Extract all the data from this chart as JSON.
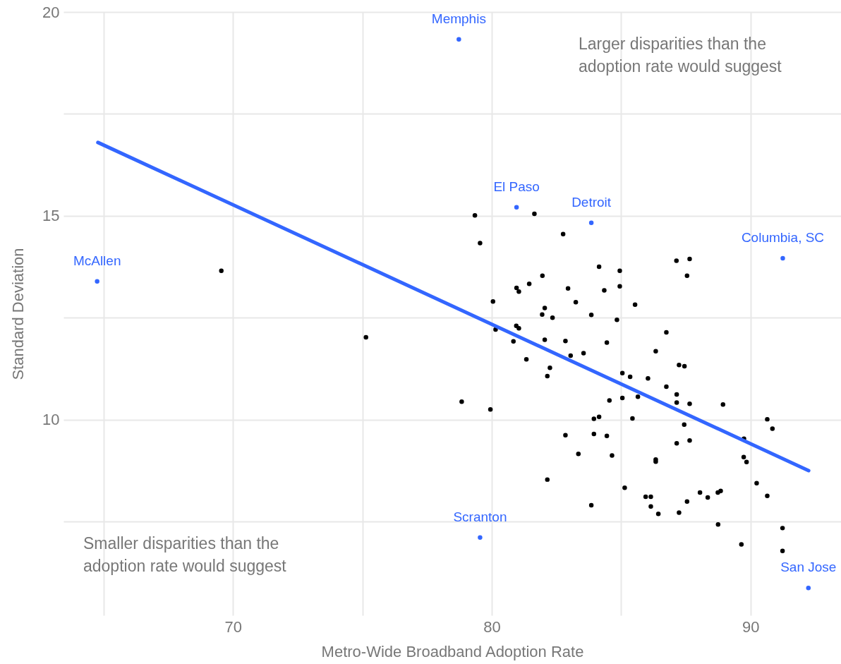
{
  "chart_data": {
    "type": "scatter",
    "xlabel": "Metro-Wide Broadband Adoption Rate",
    "ylabel": "Standard Deviation",
    "xlim": [
      63.45,
      93.5
    ],
    "ylim": [
      5.2,
      20
    ],
    "xticks": [
      {
        "value": 65,
        "label": null
      },
      70,
      {
        "value": 75,
        "label": null
      },
      80,
      {
        "value": 85,
        "label": null
      },
      90
    ],
    "yticks": [
      {
        "value": 7.5,
        "label": null
      },
      10,
      {
        "value": 12.5,
        "label": null
      },
      15,
      {
        "value": 17.5,
        "label": null
      },
      20
    ],
    "grid": true,
    "series": [
      {
        "color": "#000000",
        "marker": "circle",
        "x": [
          69.55,
          75.14,
          79.35,
          81.65,
          79.55,
          82.76,
          84.15,
          84.95,
          81.96,
          80.96,
          81.05,
          81.45,
          82.95,
          84.35,
          84.95,
          80.05,
          83.25,
          85.54,
          82.05,
          81.95,
          82.35,
          83.85,
          84.84,
          80.95,
          81.05,
          80.15,
          80.84,
          82.05,
          82.85,
          84.45,
          86.34,
          83.05,
          83.55,
          81.34,
          82.25,
          82.15,
          85.05,
          85.35,
          86.04,
          84.55,
          85.05,
          85.65,
          78.84,
          79.95,
          87.14,
          87.65,
          87.55,
          86.75,
          87.24,
          87.45,
          86.75,
          87.15,
          87.15,
          87.65,
          88.94,
          83.95,
          84.15,
          85.44,
          82.85,
          83.95,
          84.45,
          83.35,
          84.65,
          86.34,
          86.34,
          82.15,
          85.14,
          85.95,
          86.15,
          86.15,
          86.44,
          83.85,
          87.44,
          87.15,
          87.65,
          89.75,
          90.65,
          90.85,
          89.74,
          89.85,
          90.24,
          90.65,
          87.24,
          87.55,
          88.05,
          88.35,
          88.74,
          88.85,
          88.75,
          89.65,
          91.24,
          91.24
        ],
        "values": [
          13.65,
          12.02,
          15.01,
          15.05,
          14.33,
          14.55,
          13.75,
          13.65,
          13.53,
          13.23,
          13.14,
          13.33,
          13.22,
          13.17,
          13.27,
          12.9,
          12.88,
          12.82,
          12.74,
          12.58,
          12.5,
          12.57,
          12.45,
          12.3,
          12.24,
          12.21,
          11.92,
          11.96,
          11.93,
          11.89,
          11.68,
          11.57,
          11.63,
          11.48,
          11.27,
          11.07,
          11.14,
          11.05,
          11.01,
          10.47,
          10.53,
          10.56,
          10.44,
          10.25,
          13.9,
          13.94,
          13.53,
          12.14,
          11.34,
          11.31,
          10.81,
          10.62,
          10.42,
          10.39,
          10.37,
          10.02,
          10.07,
          10.03,
          9.62,
          9.65,
          9.6,
          9.16,
          9.12,
          9.02,
          8.97,
          8.53,
          8.33,
          8.11,
          8.11,
          7.87,
          7.69,
          7.9,
          9.88,
          9.42,
          9.49,
          9.53,
          10.01,
          9.78,
          9.08,
          8.96,
          8.44,
          8.13,
          7.72,
          7.99,
          8.21,
          8.09,
          8.21,
          8.25,
          7.43,
          6.94,
          7.34,
          6.78
        ]
      },
      {
        "color": "#3366ff",
        "marker": "circle",
        "x": [
          78.73,
          80.96,
          83.85,
          91.25,
          64.75,
          79.55,
          92.24
        ],
        "values": [
          19.33,
          15.21,
          14.83,
          13.96,
          13.39,
          7.11,
          5.87
        ]
      },
      {
        "type": "line",
        "color": "#3366ff",
        "x": [
          64.78,
          92.25
        ],
        "values": [
          16.8,
          8.75
        ]
      }
    ],
    "annotations": [
      "Larger disparities than the adoption rate would suggest",
      "Smaller disparities than the adoption rate would suggest",
      {
        "text": "Memphis",
        "x": 78.73,
        "y": 19.33
      },
      {
        "text": "El Paso",
        "x": 80.96,
        "y": 15.21
      },
      {
        "text": "Detroit",
        "x": 83.85,
        "y": 14.83
      },
      {
        "text": "Columbia, SC",
        "x": 91.25,
        "y": 13.96
      },
      {
        "text": "McAllen",
        "x": 64.75,
        "y": 13.39
      },
      {
        "text": "Scranton",
        "x": 79.55,
        "y": 7.11
      },
      {
        "text": "San Jose",
        "x": 92.24,
        "y": 5.87
      }
    ]
  }
}
